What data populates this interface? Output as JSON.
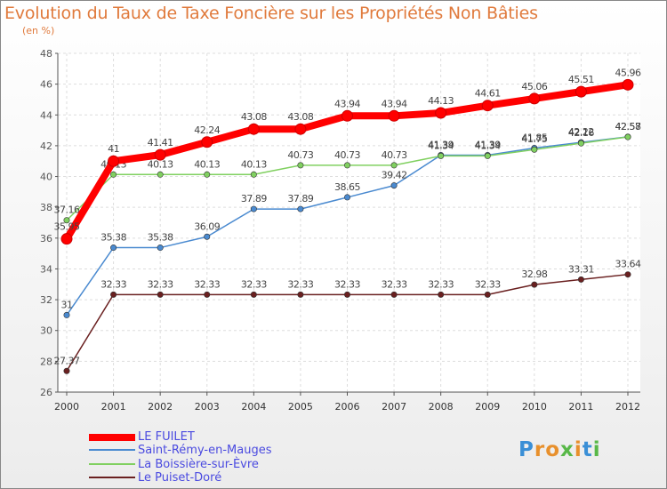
{
  "chart_data": {
    "type": "line",
    "title": "Evolution du Taux de Taxe Foncière sur les Propriétés Non Bâties",
    "subtitle": "(en %)",
    "xlabel": "",
    "ylabel": "",
    "ylim": [
      26,
      48
    ],
    "yticks": [
      26,
      28,
      30,
      32,
      34,
      36,
      38,
      40,
      42,
      44,
      46,
      48
    ],
    "grid": true,
    "categories": [
      "2000",
      "2001",
      "2002",
      "2003",
      "2004",
      "2005",
      "2006",
      "2007",
      "2008",
      "2009",
      "2010",
      "2011",
      "2012"
    ],
    "series": [
      {
        "name": "LE FUILET",
        "color": "#ff0000",
        "values": [
          35.95,
          41,
          41.41,
          42.24,
          43.08,
          43.08,
          43.94,
          43.94,
          44.13,
          44.61,
          45.06,
          45.51,
          45.96
        ],
        "labels": [
          "35.95",
          "41",
          "41.41",
          "42.24",
          "43.08",
          "43.08",
          "43.94",
          "43.94",
          "44.13",
          "44.61",
          "45.06",
          "45.51",
          "45.96"
        ]
      },
      {
        "name": "Saint-Rémy-en-Mauges",
        "color": "#4a8ad0",
        "values": [
          31,
          35.38,
          35.38,
          36.09,
          37.89,
          37.89,
          38.65,
          39.42,
          41.39,
          41.39,
          41.85,
          42.22,
          42.58
        ],
        "labels": [
          "31",
          "35.38",
          "35.38",
          "36.09",
          "37.89",
          "37.89",
          "38.65",
          "39.42",
          "41.39",
          "41.39",
          "41.85",
          "42.22",
          "42.58"
        ]
      },
      {
        "name": "La Boissière-sur-Èvre",
        "color": "#80d060",
        "values": [
          37.16,
          40.13,
          40.13,
          40.13,
          40.13,
          40.73,
          40.73,
          40.73,
          41.34,
          41.34,
          41.75,
          42.16,
          42.57
        ],
        "labels": [
          "37.16",
          "40.13",
          "40.13",
          "40.13",
          "40.13",
          "40.73",
          "40.73",
          "40.73",
          "41.34",
          "41.34",
          "41.75",
          "42.16",
          "42.57"
        ]
      },
      {
        "name": "Le Puiset-Doré",
        "color": "#6a2020",
        "values": [
          27.37,
          32.33,
          32.33,
          32.33,
          32.33,
          32.33,
          32.33,
          32.33,
          32.33,
          32.33,
          32.98,
          33.31,
          33.64
        ],
        "labels": [
          "27.37",
          "32.33",
          "32.33",
          "32.33",
          "32.33",
          "32.33",
          "32.33",
          "32.33",
          "32.33",
          "32.33",
          "32.98",
          "33.31",
          "33.64"
        ]
      }
    ],
    "legend": "bottom-left"
  },
  "logo": {
    "text": "Proxiti",
    "letters": [
      "P",
      "r",
      "o",
      "x",
      "i",
      "t",
      "i"
    ]
  }
}
